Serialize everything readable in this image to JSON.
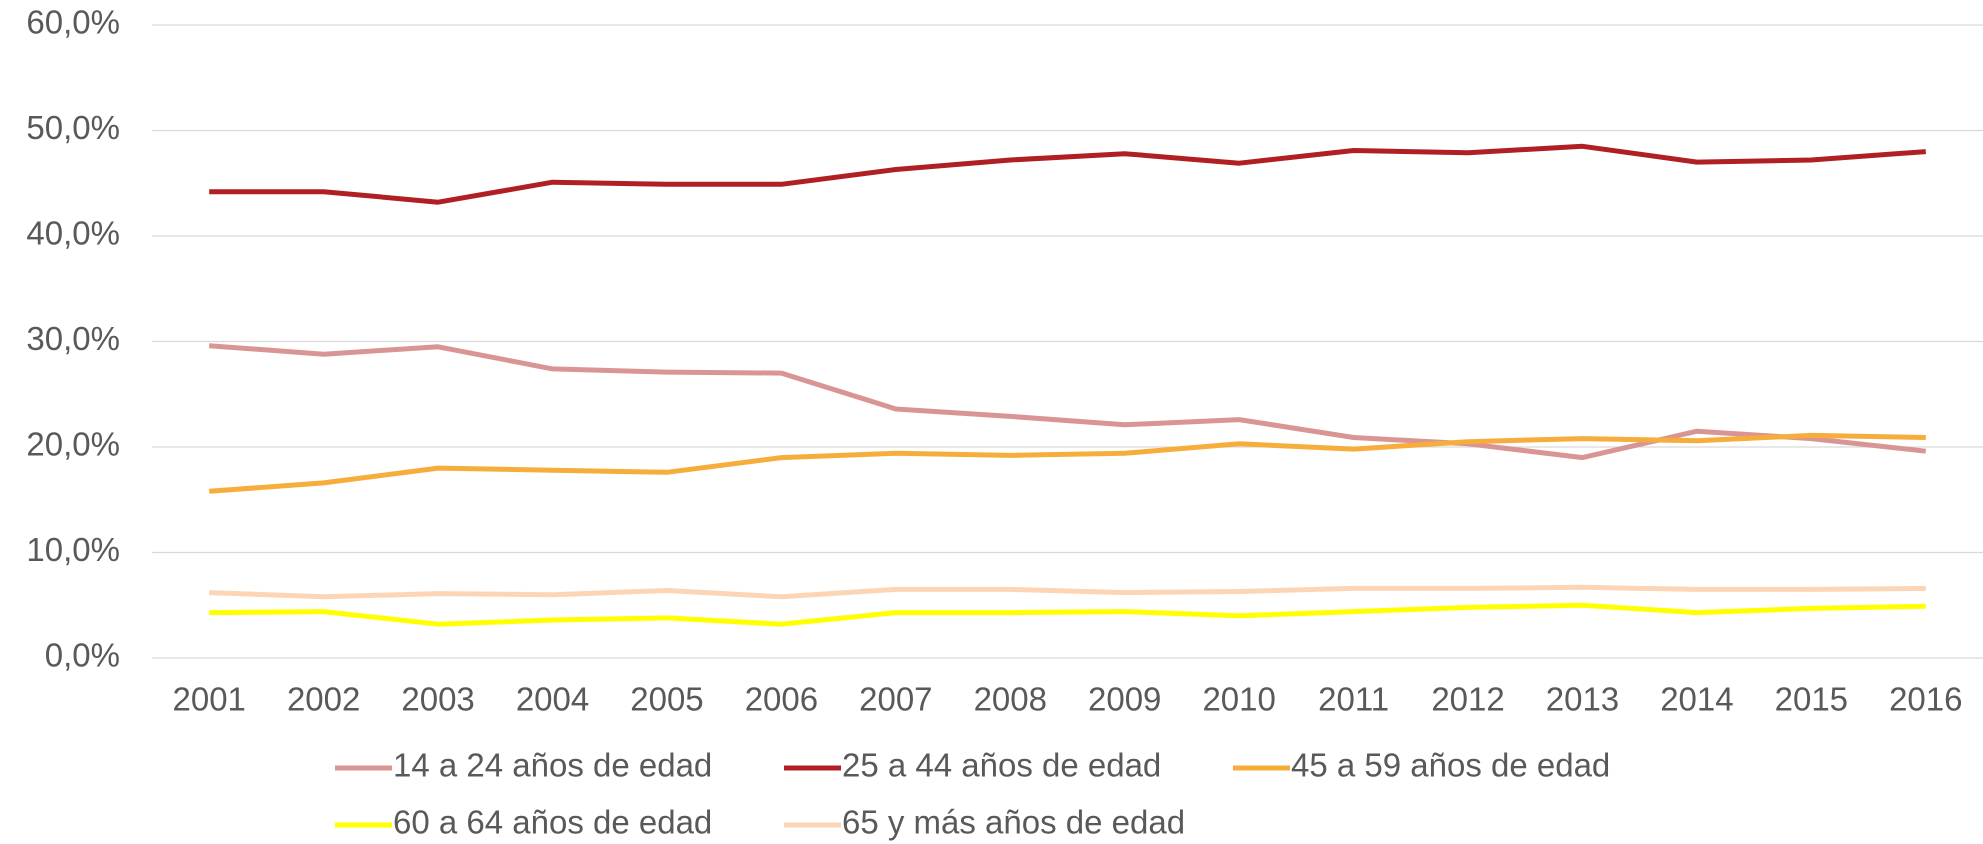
{
  "chart_data": {
    "type": "line",
    "categories": [
      "2001",
      "2002",
      "2003",
      "2004",
      "2005",
      "2006",
      "2007",
      "2008",
      "2009",
      "2010",
      "2011",
      "2012",
      "2013",
      "2014",
      "2015",
      "2016"
    ],
    "series": [
      {
        "name": "14 a 24 años de edad",
        "color": "#d99594",
        "values": [
          29.6,
          28.8,
          29.5,
          27.4,
          27.1,
          27.0,
          23.6,
          22.9,
          22.1,
          22.6,
          20.9,
          20.3,
          19.0,
          21.5,
          20.8,
          19.6
        ]
      },
      {
        "name": "25 a 44 años de edad",
        "color": "#b01f24",
        "values": [
          44.2,
          44.2,
          43.2,
          45.1,
          44.9,
          44.9,
          46.3,
          47.2,
          47.8,
          46.9,
          48.1,
          47.9,
          48.5,
          47.0,
          47.2,
          48.0
        ]
      },
      {
        "name": "45 a 59 años de edad",
        "color": "#f6ad3c",
        "values": [
          15.8,
          16.6,
          18.0,
          17.8,
          17.6,
          19.0,
          19.4,
          19.2,
          19.4,
          20.3,
          19.8,
          20.5,
          20.8,
          20.6,
          21.1,
          20.9
        ]
      },
      {
        "name": "60 a 64 años de edad",
        "color": "#ffff00",
        "values": [
          4.3,
          4.4,
          3.2,
          3.6,
          3.8,
          3.2,
          4.3,
          4.3,
          4.4,
          4.0,
          4.4,
          4.8,
          5.0,
          4.3,
          4.7,
          4.9
        ]
      },
      {
        "name": "65 y más años de edad",
        "color": "#fbd5b5",
        "values": [
          6.2,
          5.8,
          6.1,
          6.0,
          6.4,
          5.8,
          6.5,
          6.5,
          6.2,
          6.3,
          6.6,
          6.6,
          6.7,
          6.5,
          6.5,
          6.6
        ]
      }
    ],
    "ylim": [
      0,
      60
    ],
    "yticks": [
      {
        "value": 0,
        "label": "0,0%"
      },
      {
        "value": 10,
        "label": "10,0%"
      },
      {
        "value": 20,
        "label": "20,0%"
      },
      {
        "value": 30,
        "label": "30,0%"
      },
      {
        "value": 40,
        "label": "40,0%"
      },
      {
        "value": 50,
        "label": "50,0%"
      },
      {
        "value": 60,
        "label": "60,0%"
      }
    ],
    "grid": true,
    "legend": "bottom"
  }
}
